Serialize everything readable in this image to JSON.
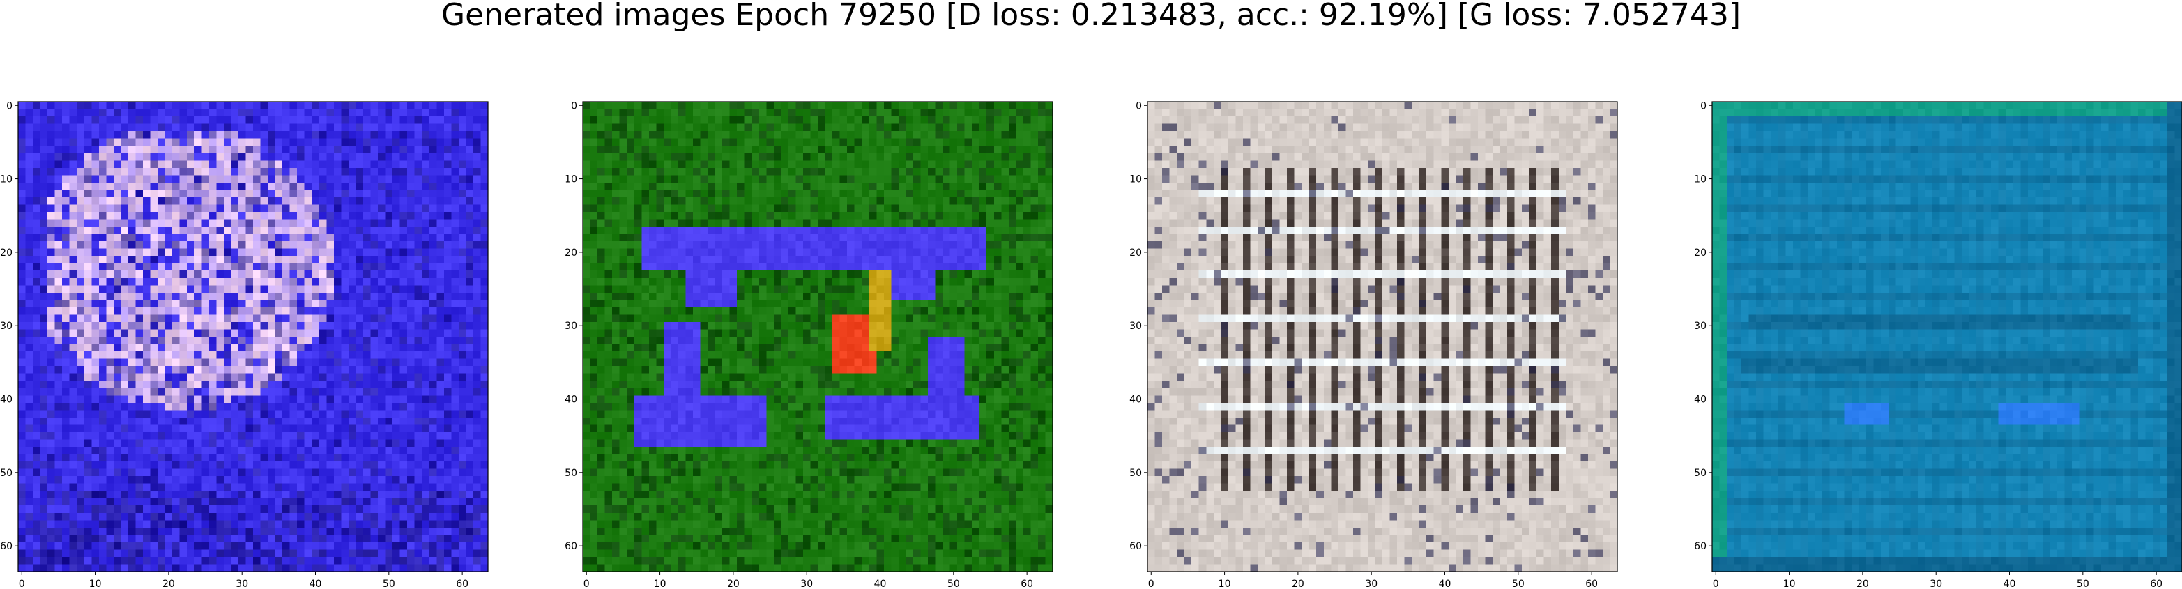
{
  "figure": {
    "title": "Generated images Epoch 79250 [D loss: 0.213483, acc.: 92.19%] [G loss: 7.052743]"
  },
  "axes": {
    "x_ticks": [
      "0",
      "10",
      "20",
      "30",
      "40",
      "50",
      "60"
    ],
    "y_ticks": [
      "0",
      "10",
      "20",
      "30",
      "40",
      "50",
      "60"
    ],
    "xlim": [
      -0.5,
      63.5
    ],
    "ylim": [
      63.5,
      -0.5
    ],
    "tick_values": [
      0,
      10,
      20,
      30,
      40,
      50,
      60
    ]
  },
  "panels": [
    {
      "id": "panel-1",
      "description_colors": {
        "base": "#3a2ee8",
        "accent": "#f3d2ef",
        "dark": "#1c1489"
      },
      "pattern": "blue-noise-with-pale-blob"
    },
    {
      "id": "panel-2",
      "description_colors": {
        "base": "#1d7d12",
        "accent": "#4b3df0",
        "highlight": "#f0421e",
        "gold": "#c9a416"
      },
      "pattern": "green-with-blue-shape"
    },
    {
      "id": "panel-3",
      "description_colors": {
        "base": "#d5cdc8",
        "bars": "#2a1f1c",
        "light": "#eef4f7"
      },
      "pattern": "beige-grid-bars"
    },
    {
      "id": "panel-4",
      "description_colors": {
        "base": "#1586b8",
        "dark": "#0c5a84",
        "accent": "#2b7ef0",
        "edge": "#13a08a"
      },
      "pattern": "teal-stripes"
    }
  ]
}
